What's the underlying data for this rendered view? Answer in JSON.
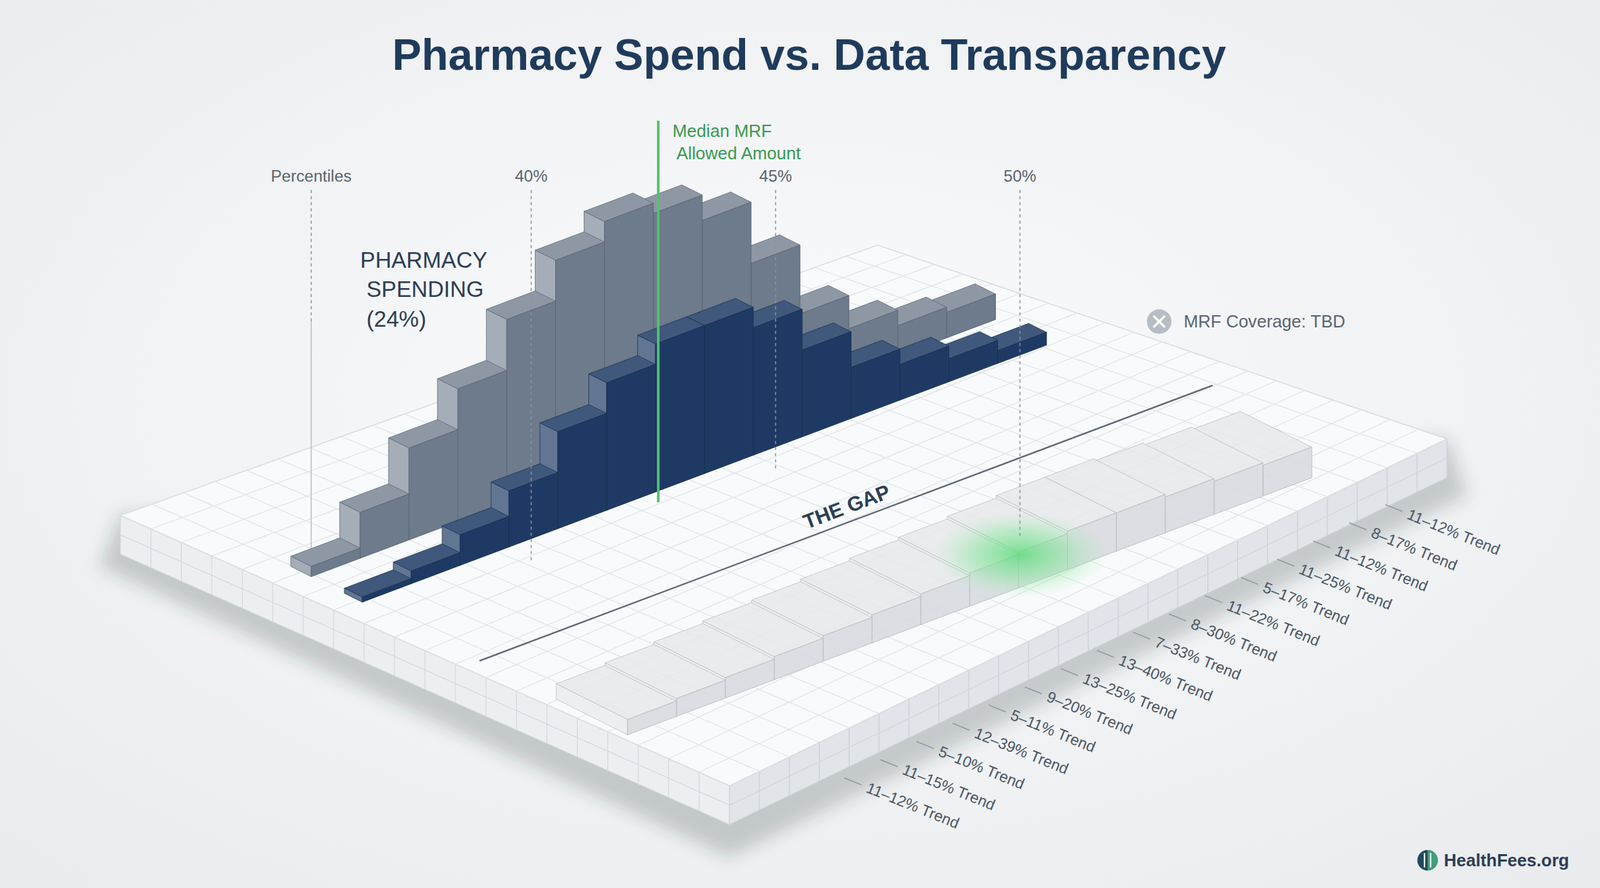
{
  "chart_data": {
    "type": "bar",
    "title": "Pharmacy Spend vs. Data Transparency",
    "x_label": "Percentiles",
    "x": [
      36,
      37,
      38,
      39,
      40,
      41,
      42,
      43,
      44,
      45,
      46,
      47,
      48,
      49
    ],
    "xlim": [
      35.5,
      50.5
    ],
    "xticks": [
      {
        "value": 40,
        "label": "40%"
      },
      {
        "value": 45,
        "label": "45%"
      },
      {
        "value": 50,
        "label": "50%"
      }
    ],
    "ylim": [
      0,
      100
    ],
    "tick_labels": "x",
    "series": [
      {
        "name": "PHARMACY SPENDING (24%)",
        "color": "#6e7b8c",
        "values": [
          4,
          18,
          36,
          52,
          72,
          88,
          96,
          92,
          82,
          58,
          31,
          18,
          12,
          10
        ]
      },
      {
        "color": "#1e3a64",
        "values": [
          2,
          5,
          12,
          22,
          38,
          50,
          58,
          58,
          50,
          34,
          20,
          14,
          9,
          5
        ]
      },
      {
        "name": "MRF Coverage: TBD",
        "color": "#d8dbdf",
        "values": [
          6,
          7,
          8,
          9,
          10,
          11,
          12,
          13,
          14,
          15,
          15,
          14,
          13,
          12
        ]
      }
    ],
    "annotations": [
      {
        "text": "Median MRF Allowed Amount",
        "x": 42.6
      },
      {
        "text": "THE GAP"
      }
    ],
    "trend_labels": [
      "11–12% Trend",
      "8–17% Trend",
      "11–12% Trend",
      "11–25% Trend",
      "5–17% Trend",
      "11–22% Trend",
      "8–30% Trend",
      "7–33% Trend",
      "13–40% Trend",
      "13–25% Trend",
      "9–20% Trend",
      "5–11% Trend",
      "12–39% Trend",
      "5–10% Trend",
      "11–15% Trend",
      "11–12% Trend"
    ],
    "source": "HealthFees.org"
  }
}
